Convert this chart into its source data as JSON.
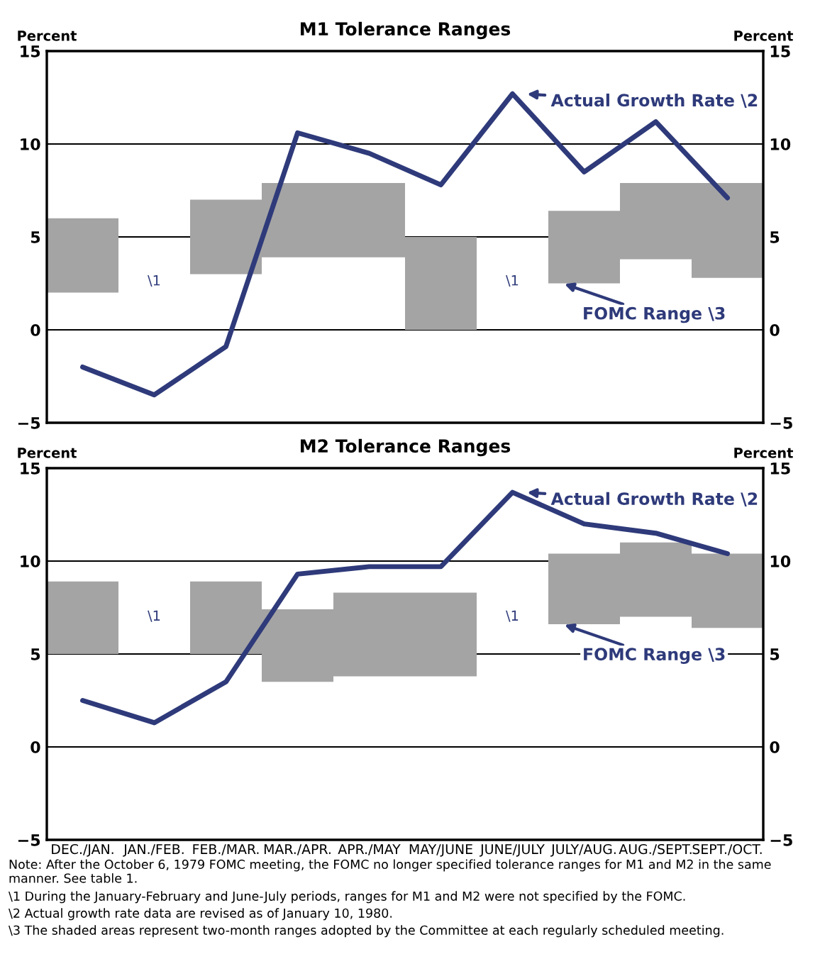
{
  "chart_data": [
    {
      "type": "bar",
      "title": "M1 Tolerance Ranges",
      "ylabel": "Percent",
      "y2label": "Percent",
      "categories": [
        "DEC./JAN.",
        "JAN./FEB.",
        "FEB./MAR.",
        "MAR./APR.",
        "APR./MAY",
        "MAY/JUNE",
        "JUNE/JULY",
        "JULY/AUG.",
        "AUG./SEPT.",
        "SEPT./OCT."
      ],
      "series": [
        {
          "color": "#a4a4a4",
          "base": [
            2,
            null,
            3,
            3.9,
            3.9,
            0,
            null,
            2.5,
            3.8,
            2.8
          ],
          "values": [
            4,
            null,
            4,
            4,
            4,
            5,
            null,
            3.9,
            4.1,
            5.1
          ]
        },
        {
          "type": "line",
          "color": "#2e3a7a",
          "values": [
            -2.0,
            -3.5,
            -0.9,
            10.6,
            9.5,
            7.8,
            12.7,
            8.5,
            11.2,
            7.1
          ]
        }
      ],
      "ylim": [
        -5,
        15
      ],
      "yticks": [
        {
          "value": -5,
          "label": "−5"
        },
        0,
        5,
        10,
        15
      ],
      "y2lim": [
        -5,
        15
      ],
      "y2ticks": [
        {
          "value": -5,
          "label": "−5"
        },
        0,
        5,
        10,
        15
      ],
      "grid": true,
      "tick_labels": "y",
      "annotations": [
        {
          "text": "Actual Growth Rate \\2",
          "x": "JUNE/JULY",
          "y": 12.7
        },
        {
          "text": "FOMC Range \\3",
          "x": "JULY/AUG.",
          "y": 2.5
        },
        "\\1",
        "\\1"
      ]
    },
    {
      "type": "bar",
      "title": "M2 Tolerance Ranges",
      "ylabel": "Percent",
      "y2label": "Percent",
      "categories": [
        "DEC./JAN.",
        "JAN./FEB.",
        "FEB./MAR.",
        "MAR./APR.",
        "APR./MAY",
        "MAY/JUNE",
        "JUNE/JULY",
        "JULY/AUG.",
        "AUG./SEPT.",
        "SEPT./OCT."
      ],
      "series": [
        {
          "color": "#a4a4a4",
          "base": [
            5,
            null,
            5,
            3.5,
            3.8,
            3.8,
            null,
            6.6,
            7.0,
            6.4
          ],
          "values": [
            3.9,
            null,
            3.9,
            3.9,
            4.5,
            4.5,
            null,
            3.8,
            4.0,
            4.0
          ]
        },
        {
          "type": "line",
          "color": "#2e3a7a",
          "values": [
            2.5,
            1.3,
            3.5,
            9.3,
            9.7,
            9.7,
            13.7,
            12.0,
            11.5,
            10.4
          ]
        }
      ],
      "ylim": [
        -5,
        15
      ],
      "yticks": [
        {
          "value": -5,
          "label": "−5"
        },
        0,
        5,
        10,
        15
      ],
      "y2lim": [
        -5,
        15
      ],
      "y2ticks": [
        {
          "value": -5,
          "label": "−5"
        },
        0,
        5,
        10,
        15
      ],
      "grid": true,
      "annotations": [
        {
          "text": "Actual Growth Rate \\2",
          "x": "JUNE/JULY",
          "y": 13.7
        },
        {
          "text": "FOMC Range \\3",
          "x": "JULY/AUG.",
          "y": 6.6
        },
        "\\1",
        "\\1",
        "Note: After the October 6, 1979 FOMC meeting, the FOMC no longer specified tolerance ranges for M1 and M2 in the same manner. See table 1.",
        "\\1 During the January-February and June-July periods, ranges for M1 and M2 were not specified by the FOMC.",
        "\\2 Actual growth rate data are revised as of January 10, 1980.",
        "\\3 The shaded areas represent two-month ranges adopted by the Committee at each regularly scheduled meeting."
      ]
    }
  ]
}
